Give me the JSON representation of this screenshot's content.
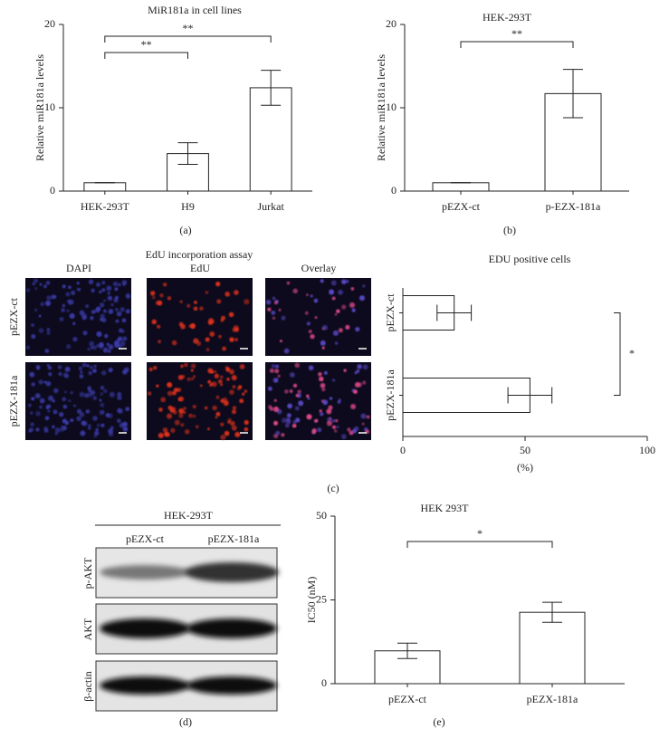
{
  "chart_data": [
    {
      "type": "bar",
      "title": "MiR181a in cell lines",
      "ylabel": "Relative miR181a levels",
      "categories": [
        "HEK-293T",
        "H9",
        "Jurkat"
      ],
      "values": [
        1,
        4.5,
        12.4
      ],
      "errors": [
        0,
        1.3,
        2.1
      ],
      "color": "#ffffff",
      "ylim": [
        0,
        20
      ],
      "yticks": [
        0,
        10,
        20
      ],
      "annotations": [
        "**",
        "**"
      ]
    },
    {
      "type": "bar",
      "title": "HEK-293T",
      "ylabel": "Relative miR181a levels",
      "categories": [
        "pEZX-ct",
        "p-EZX-181a"
      ],
      "values": [
        1,
        11.7
      ],
      "errors": [
        0,
        2.9
      ],
      "color": "#ffffff",
      "ylim": [
        0,
        20
      ],
      "yticks": [
        0,
        10,
        20
      ],
      "annotations": [
        "**"
      ]
    },
    {
      "type": "hbar",
      "title": "EDU positive cells",
      "xlabel": "(%)",
      "categories": [
        "pEZX-ct",
        "pEZX-181a"
      ],
      "values": [
        21,
        52
      ],
      "errors": [
        7,
        9
      ],
      "color": "#ffffff",
      "xlim": [
        0,
        100
      ],
      "xticks": [
        0,
        50,
        100
      ],
      "annotations": [
        "*"
      ]
    },
    {
      "type": "bar",
      "title": "HEK 293T",
      "ylabel": "IC50 (nM)",
      "categories": [
        "pEZX-ct",
        "pEZX-181a"
      ],
      "values": [
        9.8,
        21.3
      ],
      "errors": [
        2.3,
        3
      ],
      "color": "#ffffff",
      "ylim": [
        0,
        50
      ],
      "yticks": [
        0,
        25,
        50
      ],
      "annotations": [
        "*"
      ]
    }
  ],
  "panel_labels": [
    "(a)",
    "(b)",
    "(c)",
    "(d)",
    "(e)"
  ],
  "microscopy": {
    "title": "EdU incorporation assay",
    "columns": [
      "DAPI",
      "EdU",
      "Overlay"
    ],
    "rows": [
      "pEZX-ct",
      "pEZX-181a"
    ]
  },
  "western_blot": {
    "title": "HEK-293T",
    "columns": [
      "pEZX-ct",
      "pEZX-181a"
    ],
    "rows": [
      "p-AKT",
      "AKT",
      "β-actin"
    ]
  }
}
